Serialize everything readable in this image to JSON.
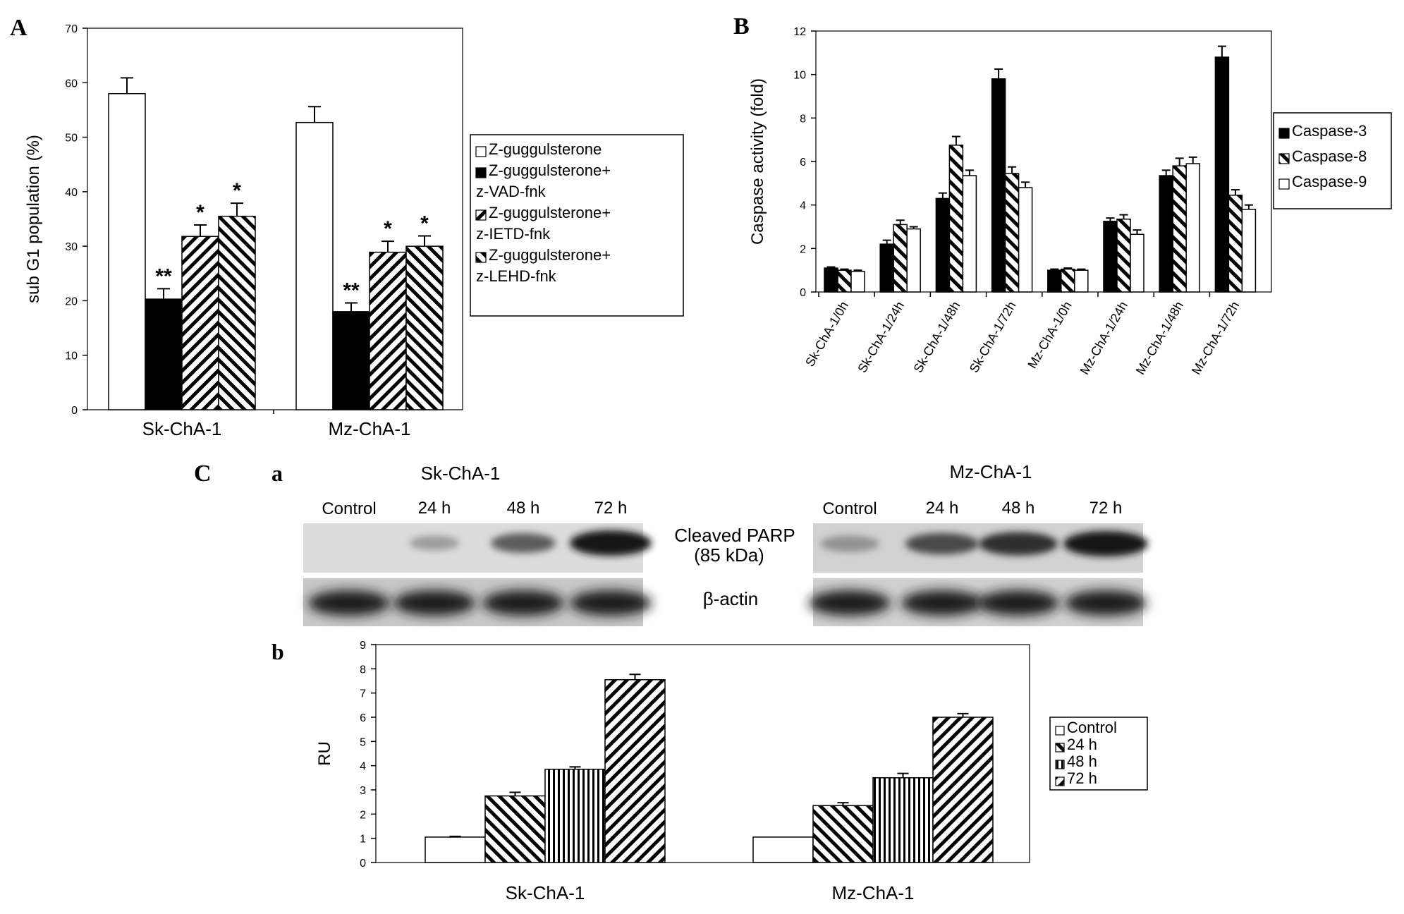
{
  "figure": {
    "panel_labels": {
      "A": "A",
      "B": "B",
      "C": "C",
      "a": "a",
      "b": "b"
    }
  },
  "chart_data": [
    {
      "id": "A",
      "type": "bar",
      "ylabel": "sub G1 population (%)",
      "ylim": [
        0,
        70
      ],
      "yticks": [
        0,
        10,
        20,
        30,
        40,
        50,
        60,
        70
      ],
      "categories": [
        "Sk-ChA-1",
        "Mz-ChA-1"
      ],
      "series": [
        {
          "name": "Z-guggulsterone",
          "pattern": "white",
          "values": [
            58,
            52.7
          ],
          "errors": [
            2.9,
            2.9
          ],
          "stars": [
            "",
            ""
          ]
        },
        {
          "name": "Z-guggulsterone+\nz-VAD-fnk",
          "pattern": "black",
          "values": [
            20.3,
            18
          ],
          "errors": [
            1.9,
            1.6
          ],
          "stars": [
            "**",
            "**"
          ]
        },
        {
          "name": "Z-guggulsterone+\nz-IETD-fnk",
          "pattern": "hatch-fwd",
          "values": [
            31.8,
            28.9
          ],
          "errors": [
            2.1,
            2
          ],
          "stars": [
            "*",
            "*"
          ]
        },
        {
          "name": "Z-guggulsterone+\nz-LEHD-fnk",
          "pattern": "hatch-back",
          "values": [
            35.5,
            30
          ],
          "errors": [
            2.4,
            1.9
          ],
          "stars": [
            "*",
            "*"
          ]
        }
      ],
      "legend": "right"
    },
    {
      "id": "B",
      "type": "bar",
      "ylabel": "Caspase activity (fold)",
      "ylim": [
        0,
        12
      ],
      "yticks": [
        0,
        2,
        4,
        6,
        8,
        10,
        12
      ],
      "categories": [
        "Sk-ChA-1/0h",
        "Sk-ChA-1/24h",
        "Sk-ChA-1/48h",
        "Sk-ChA-1/72h",
        "Mz-ChA-1/0h",
        "Mz-ChA-1/24h",
        "Mz-ChA-1/48h",
        "Mz-ChA-1/72h"
      ],
      "series": [
        {
          "name": "Caspase-3",
          "pattern": "black",
          "values": [
            1.1,
            2.2,
            4.3,
            9.8,
            1.0,
            3.25,
            5.35,
            10.8
          ],
          "errors": [
            0.05,
            0.18,
            0.25,
            0.45,
            0.05,
            0.15,
            0.25,
            0.5
          ]
        },
        {
          "name": "Caspase-8",
          "pattern": "hatch-back",
          "values": [
            1.0,
            3.1,
            6.75,
            5.45,
            1.05,
            3.35,
            5.8,
            4.45
          ],
          "errors": [
            0.05,
            0.2,
            0.4,
            0.3,
            0.05,
            0.2,
            0.35,
            0.25
          ]
        },
        {
          "name": "Caspase-9",
          "pattern": "white",
          "values": [
            0.95,
            2.9,
            5.35,
            4.8,
            1.0,
            2.65,
            5.9,
            3.8
          ],
          "errors": [
            0.05,
            0.1,
            0.25,
            0.25,
            0.05,
            0.2,
            0.3,
            0.2
          ]
        }
      ],
      "legend": "right"
    },
    {
      "id": "C-b",
      "type": "bar",
      "ylabel": "RU",
      "ylim": [
        0,
        9
      ],
      "yticks": [
        0,
        1,
        2,
        3,
        4,
        5,
        6,
        7,
        8,
        9
      ],
      "categories": [
        "Sk-ChA-1",
        "Mz-ChA-1"
      ],
      "series": [
        {
          "name": "Control",
          "pattern": "white",
          "values": [
            1.05,
            1.05
          ],
          "errors": [
            0.03,
            0.0
          ]
        },
        {
          "name": "24 h",
          "pattern": "hatch-back",
          "values": [
            2.75,
            2.35
          ],
          "errors": [
            0.15,
            0.12
          ]
        },
        {
          "name": "48 h",
          "pattern": "vlines",
          "values": [
            3.85,
            3.5
          ],
          "errors": [
            0.1,
            0.18
          ]
        },
        {
          "name": "72 h",
          "pattern": "hatch-fwd",
          "values": [
            7.55,
            6.0
          ],
          "errors": [
            0.22,
            0.15
          ]
        }
      ],
      "legend": "right"
    }
  ],
  "blot": {
    "left_title": "Sk-ChA-1",
    "right_title": "Mz-ChA-1",
    "lanes": [
      "Control",
      "24 h",
      "48 h",
      "72 h"
    ],
    "band1_label_line1": "Cleaved PARP",
    "band1_label_line2": "(85 kDa)",
    "band2_label": "β-actin",
    "parp_intensity_left": [
      0.0,
      0.25,
      0.6,
      1.0
    ],
    "parp_intensity_right": [
      0.3,
      0.7,
      0.85,
      1.0
    ]
  }
}
